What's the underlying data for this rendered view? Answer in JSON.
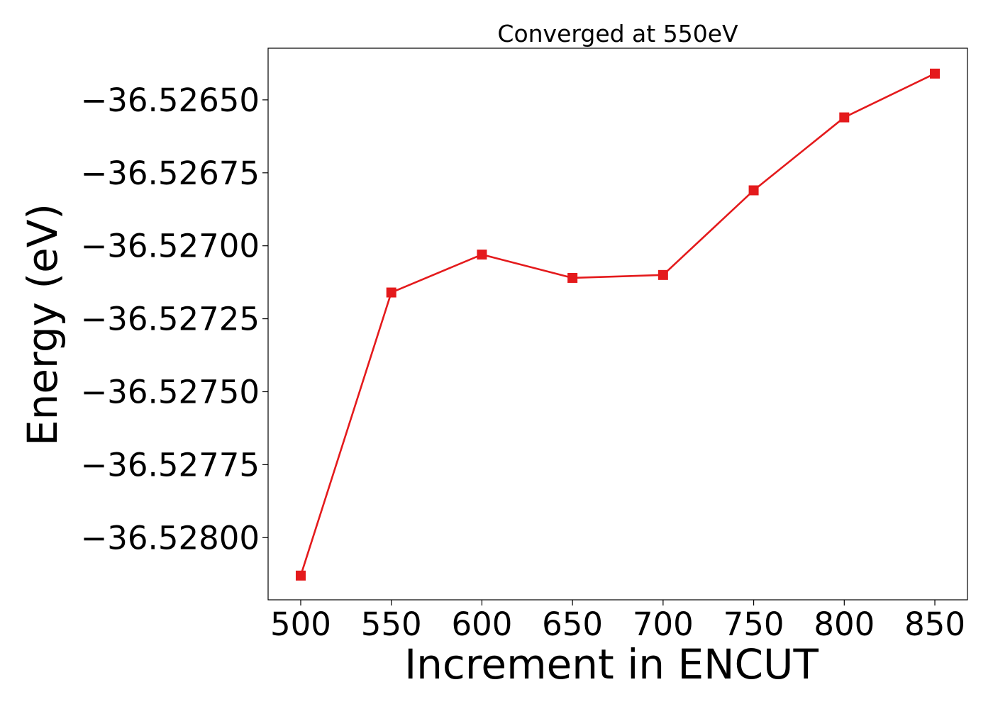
{
  "chart_data": {
    "type": "line",
    "title": "Converged at 550eV",
    "xlabel": "Increment in ENCUT",
    "ylabel": "Energy (eV)",
    "x": [
      500,
      550,
      600,
      650,
      700,
      750,
      800,
      850
    ],
    "series": [
      {
        "values": [
          -36.52813,
          -36.52716,
          -36.52703,
          -36.52711,
          -36.5271,
          -36.52681,
          -36.52656,
          -36.52641
        ],
        "color": "#e41a1c",
        "marker": "square"
      }
    ],
    "xticks": [
      500,
      550,
      600,
      650,
      700,
      750,
      800,
      850
    ],
    "xtick_labels": [
      "500",
      "550",
      "600",
      "650",
      "700",
      "750",
      "800",
      "850"
    ],
    "yticks": [
      -36.528,
      -36.52775,
      -36.5275,
      -36.52725,
      -36.527,
      -36.52675,
      -36.5265
    ],
    "ytick_labels": [
      "−36.52800",
      "−36.52775",
      "−36.52750",
      "−36.52725",
      "−36.52700",
      "−36.52675",
      "−36.52650"
    ],
    "xlim": [
      482,
      868
    ],
    "ylim": [
      -36.528213,
      -36.526323
    ],
    "grid": false,
    "legend": "none"
  }
}
